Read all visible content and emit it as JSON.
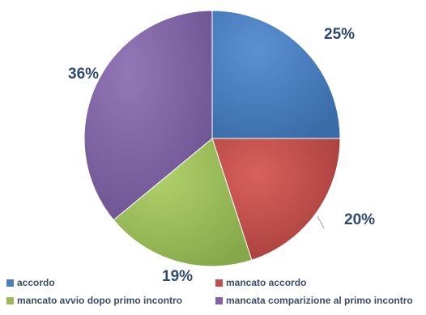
{
  "chart_data": {
    "type": "pie",
    "categories": [
      "accordo",
      "mancato accordo",
      "mancato avvio dopo primo incontro",
      "mancata comparizione al primo incontro"
    ],
    "values": [
      25,
      20,
      19,
      36
    ],
    "labels": [
      "25%",
      "20%",
      "19%",
      "36%"
    ],
    "colors": [
      "#4a7ebf",
      "#c0504d",
      "#9bbb59",
      "#8064a2"
    ],
    "start_angle_deg": 0,
    "direction": "clockwise",
    "legend_position": "bottom"
  }
}
